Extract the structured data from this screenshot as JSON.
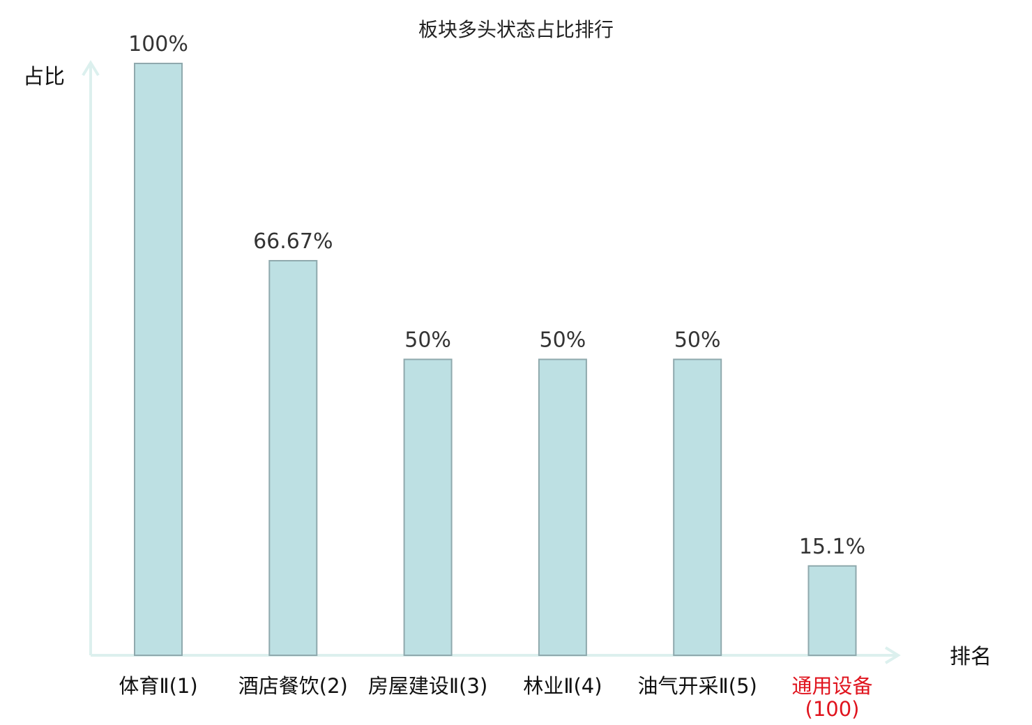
{
  "chart_data": {
    "type": "bar",
    "title": "板块多头状态占比排行",
    "ylabel": "占比",
    "xlabel": "排名",
    "categories": [
      {
        "name": "体育Ⅱ",
        "rank": "(1)",
        "highlight": false
      },
      {
        "name": "酒店餐饮",
        "rank": "(2)",
        "highlight": false
      },
      {
        "name": "房屋建设Ⅱ",
        "rank": "(3)",
        "highlight": false
      },
      {
        "name": "林业Ⅱ",
        "rank": "(4)",
        "highlight": false
      },
      {
        "name": "油气开采Ⅱ",
        "rank": "(5)",
        "highlight": false
      },
      {
        "name": "通用设备",
        "rank": "(100)",
        "highlight": true
      }
    ],
    "values": [
      100,
      66.67,
      50,
      50,
      50,
      15.1
    ],
    "value_labels": [
      "100%",
      "66.67%",
      "50%",
      "50%",
      "50%",
      "15.1%"
    ],
    "ylim": [
      0,
      100
    ],
    "colors": {
      "bar_fill": "#bde0e3",
      "bar_stroke": "#8fa9ad",
      "axis": "#dcf0ee",
      "highlight_label": "#e0141e"
    }
  }
}
